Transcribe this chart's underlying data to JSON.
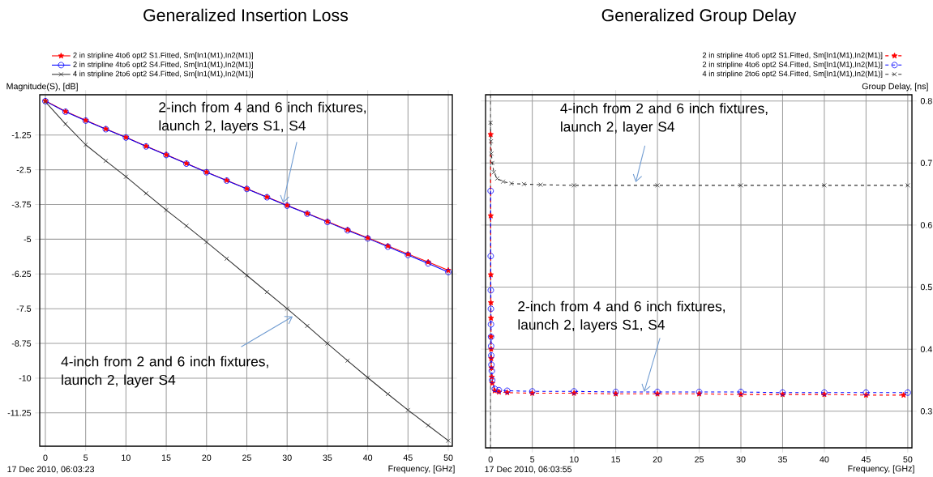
{
  "chart_data": [
    {
      "type": "line",
      "title": "Generalized Insertion Loss",
      "ylabel": "Magnitude(S), [dB]",
      "xlabel": "Frequency, [GHz]",
      "x": [
        0,
        2.5,
        5,
        7.5,
        10,
        12.5,
        15,
        17.5,
        20,
        22.5,
        25,
        27.5,
        30,
        32.5,
        35,
        37.5,
        40,
        42.5,
        45,
        47.5,
        50
      ],
      "series": [
        {
          "name": "2 in stripline 4to6 opt2 S1.Fitted, Sm[In1(M1),In2(M1)]",
          "color": "#ff0000",
          "marker": "star",
          "values": [
            -0.02,
            -0.4,
            -0.72,
            -1.03,
            -1.33,
            -1.65,
            -1.96,
            -2.27,
            -2.58,
            -2.88,
            -3.18,
            -3.48,
            -3.78,
            -4.07,
            -4.36,
            -4.66,
            -4.95,
            -5.24,
            -5.53,
            -5.82,
            -6.12
          ]
        },
        {
          "name": "2 in stripline 4to6 opt2 S4.Fitted, Sm[In1(M1),In2(M1)]",
          "color": "#0000ff",
          "marker": "circle",
          "values": [
            -0.03,
            -0.41,
            -0.73,
            -1.04,
            -1.34,
            -1.66,
            -1.97,
            -2.28,
            -2.59,
            -2.89,
            -3.19,
            -3.49,
            -3.79,
            -4.08,
            -4.38,
            -4.68,
            -4.97,
            -5.27,
            -5.57,
            -5.87,
            -6.18
          ]
        },
        {
          "name": "4 in stripline 2to6 opt2 S4.Fitted, Sm[In1(M1),In2(M1)]",
          "color": "#333333",
          "marker": "cross",
          "values": [
            -0.05,
            -0.85,
            -1.6,
            -2.18,
            -2.75,
            -3.35,
            -3.95,
            -4.52,
            -5.1,
            -5.7,
            -6.3,
            -6.9,
            -7.5,
            -8.12,
            -8.75,
            -9.37,
            -9.98,
            -10.57,
            -11.15,
            -11.7,
            -12.25
          ]
        }
      ],
      "xlim": [
        -0.7,
        50.5
      ],
      "ylim": [
        -12.45,
        0.2
      ],
      "xticks": [
        0,
        5,
        10,
        15,
        20,
        25,
        30,
        35,
        40,
        45,
        50
      ],
      "yticks": [
        -11.25,
        -10,
        -8.75,
        -7.5,
        -6.25,
        -5,
        -3.75,
        -2.5,
        -1.25
      ],
      "grid": true,
      "legend": "top",
      "line_style": "solid",
      "annotations": [
        "17 Dec 2010, 06:03:23",
        {
          "text": "2-inch from 4 and 6 inch fixtures, launch 2, layers S1, S4",
          "x": 29.5,
          "y": -3.7
        },
        {
          "text": "4-inch from 2 and 6 inch fixtures, launch 2, layer S4",
          "x": 30.7,
          "y": -7.78
        }
      ]
    },
    {
      "type": "line",
      "title": "Generalized Group Delay",
      "ylabel": "Group Delay, [ns]",
      "xlabel": "Frequency, [GHz]",
      "series": [
        {
          "name": "2 in stripline 4to6 opt2 S1.Fitted, Sm[In1(M1),In2(M1)]",
          "color": "#ff0000",
          "marker": "star",
          "x": [
            0.01,
            0.02,
            0.03,
            0.04,
            0.05,
            0.06,
            0.07,
            0.08,
            0.1,
            0.15,
            0.2,
            0.5,
            1,
            2,
            5,
            10,
            15,
            20,
            25,
            30,
            35,
            40,
            45,
            49.5
          ],
          "values": [
            0.746,
            0.615,
            0.52,
            0.475,
            0.45,
            0.42,
            0.4,
            0.385,
            0.37,
            0.355,
            0.345,
            0.333,
            0.331,
            0.33,
            0.329,
            0.329,
            0.328,
            0.328,
            0.328,
            0.327,
            0.327,
            0.327,
            0.326,
            0.326
          ]
        },
        {
          "name": "2 in stripline 4to6 opt2 S4.Fitted, Sm[In1(M1),In2(M1)]",
          "color": "#0000ff",
          "marker": "circle",
          "x": [
            0.01,
            0.02,
            0.03,
            0.04,
            0.05,
            0.06,
            0.07,
            0.08,
            0.1,
            0.15,
            0.2,
            0.5,
            1,
            2,
            5,
            10,
            15,
            20,
            25,
            30,
            35,
            40,
            45,
            50
          ],
          "values": [
            0.655,
            0.55,
            0.495,
            0.465,
            0.44,
            0.42,
            0.405,
            0.39,
            0.375,
            0.365,
            0.35,
            0.336,
            0.334,
            0.333,
            0.332,
            0.332,
            0.331,
            0.331,
            0.331,
            0.331,
            0.33,
            0.33,
            0.33,
            0.33
          ]
        },
        {
          "name": "4 in stripline 2to6 opt2 S4.Fitted, Sm[In1(M1),In2(M1)]",
          "color": "#333333",
          "marker": "cross",
          "x": [
            0,
            0.05,
            0.1,
            0.2,
            0.4,
            0.8,
            1.5,
            2.5,
            4,
            6,
            10,
            20,
            30,
            40,
            50
          ],
          "values": [
            0.765,
            0.735,
            0.715,
            0.7,
            0.685,
            0.675,
            0.67,
            0.667,
            0.666,
            0.665,
            0.664,
            0.664,
            0.664,
            0.664,
            0.664
          ]
        }
      ],
      "xlim": [
        -0.6,
        50.5
      ],
      "ylim": [
        0.241,
        0.81
      ],
      "xticks": [
        0,
        5,
        10,
        15,
        20,
        25,
        30,
        35,
        40,
        45,
        50
      ],
      "yticks": [
        0.3,
        0.4,
        0.5,
        0.6,
        0.7,
        0.8
      ],
      "grid": true,
      "legend": "top",
      "line_style": "dashed",
      "ref_lines": [
        {
          "axis": "x",
          "value": 0,
          "color": "#000000",
          "line_style": "dashed"
        }
      ],
      "annotations": [
        "17 Dec 2010, 06:03:55",
        {
          "text": "4-inch from 2 and 6 inch fixtures, launch 2, layer S4",
          "x": 17.4,
          "y": 0.669
        },
        {
          "text": "2-inch from 4 and 6 inch fixtures, launch 2, layers S1, S4",
          "x": 18.4,
          "y": 0.331
        }
      ]
    }
  ]
}
